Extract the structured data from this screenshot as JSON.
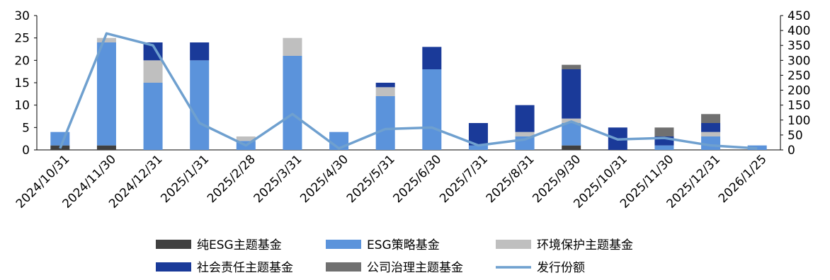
{
  "chart_data": {
    "type": "bar",
    "stacked": true,
    "categories": [
      "2024/10/31",
      "2024/11/30",
      "2024/12/31",
      "2025/1/31",
      "2025/2/28",
      "2025/3/31",
      "2025/4/30",
      "2025/5/31",
      "2025/6/30",
      "2025/7/31",
      "2025/8/31",
      "2025/9/30",
      "2025/10/31",
      "2025/11/30",
      "2025/12/31",
      "2026/1/25"
    ],
    "series": [
      {
        "name": "纯ESG主题基金",
        "color": "#404040",
        "values": [
          1,
          1,
          0,
          0,
          0,
          0,
          0,
          0,
          0,
          0,
          0,
          1,
          0,
          0,
          0,
          0
        ]
      },
      {
        "name": "ESG策略基金",
        "color": "#5B93DB",
        "values": [
          3,
          23,
          15,
          20,
          2,
          21,
          4,
          12,
          18,
          1,
          3,
          5,
          0,
          1,
          3,
          1
        ]
      },
      {
        "name": "环境保护主题基金",
        "color": "#BFBFBF",
        "values": [
          0,
          1,
          5,
          0,
          1,
          4,
          0,
          2,
          0,
          0,
          1,
          1,
          0,
          0,
          1,
          0
        ]
      },
      {
        "name": "社会责任主题基金",
        "color": "#1A3A99",
        "values": [
          0,
          0,
          4,
          4,
          0,
          0,
          0,
          1,
          5,
          5,
          6,
          11,
          5,
          2,
          2,
          0
        ]
      },
      {
        "name": "公司治理主题基金",
        "color": "#707070",
        "values": [
          0,
          0,
          0,
          0,
          0,
          0,
          0,
          0,
          0,
          0,
          0,
          1,
          0,
          2,
          2,
          0
        ]
      }
    ],
    "line_series": {
      "name": "发行份额",
      "color": "#6FA0CF",
      "axis": "right",
      "values": [
        5,
        390,
        350,
        90,
        15,
        120,
        5,
        70,
        75,
        15,
        35,
        95,
        35,
        40,
        15,
        5
      ]
    },
    "y_left": {
      "min": 0,
      "max": 30,
      "ticks": [
        "0",
        "5",
        "10",
        "15",
        "20",
        "25",
        "30"
      ]
    },
    "y_right": {
      "min": 0,
      "max": 450,
      "ticks": [
        "0",
        "50",
        "100",
        "150",
        "200",
        "250",
        "300",
        "350",
        "400",
        "450"
      ]
    },
    "legend_position": "bottom",
    "grid": false
  }
}
